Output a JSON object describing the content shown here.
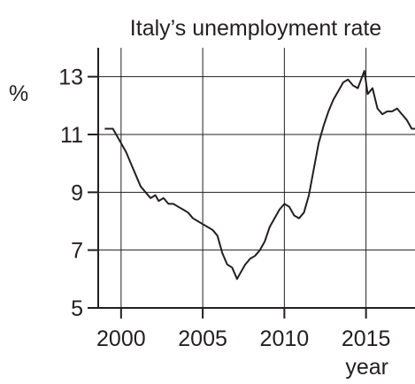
{
  "chart_data": {
    "type": "line",
    "title": "Italy’s unemployment rate",
    "xlabel": "year",
    "ylabel": "%",
    "xlim": [
      1998.6,
      2018.0
    ],
    "ylim": [
      5,
      14
    ],
    "x_ticks": [
      2000,
      2005,
      2010,
      2015
    ],
    "x_tick_labels": [
      "2000",
      "2005",
      "2010",
      "2015"
    ],
    "y_ticks": [
      5,
      7,
      9,
      11,
      13
    ],
    "y_tick_labels": [
      "5",
      "7",
      "9",
      "11",
      "13"
    ],
    "grid": true,
    "series": [
      {
        "x": [
          1999.0,
          1999.5,
          1999.8,
          2000.0,
          2000.3,
          2000.6,
          2000.9,
          2001.2,
          2001.5,
          2001.8,
          2002.1,
          2002.3,
          2002.6,
          2002.9,
          2003.2,
          2003.5,
          2003.8,
          2004.1,
          2004.4,
          2004.7,
          2005.0,
          2005.3,
          2005.6,
          2005.9,
          2006.2,
          2006.5,
          2006.8,
          2007.1,
          2007.3,
          2007.6,
          2007.9,
          2008.2,
          2008.5,
          2008.8,
          2009.1,
          2009.4,
          2009.7,
          2010.0,
          2010.3,
          2010.6,
          2010.9,
          2011.2,
          2011.5,
          2011.8,
          2012.1,
          2012.4,
          2012.7,
          2013.0,
          2013.3,
          2013.6,
          2013.9,
          2014.2,
          2014.5,
          2014.7,
          2014.9,
          2015.1,
          2015.4,
          2015.7,
          2016.0,
          2016.3,
          2016.6,
          2016.9,
          2017.2,
          2017.5,
          2017.8,
          2018.0
        ],
        "values": [
          11.2,
          11.2,
          10.9,
          10.7,
          10.4,
          10.0,
          9.6,
          9.2,
          9.0,
          8.8,
          8.9,
          8.7,
          8.8,
          8.6,
          8.6,
          8.5,
          8.4,
          8.3,
          8.1,
          8.0,
          7.9,
          7.8,
          7.7,
          7.5,
          6.9,
          6.5,
          6.4,
          6.0,
          6.2,
          6.5,
          6.7,
          6.8,
          7.0,
          7.3,
          7.8,
          8.1,
          8.4,
          8.6,
          8.5,
          8.2,
          8.1,
          8.3,
          8.9,
          9.8,
          10.7,
          11.3,
          11.8,
          12.2,
          12.5,
          12.8,
          12.9,
          12.7,
          12.6,
          12.9,
          13.2,
          12.4,
          12.6,
          11.9,
          11.7,
          11.8,
          11.8,
          11.9,
          11.7,
          11.5,
          11.2,
          11.2
        ]
      }
    ]
  },
  "colors": {
    "line": "#231f20",
    "axis": "#231f20",
    "grid": "#231f20"
  }
}
